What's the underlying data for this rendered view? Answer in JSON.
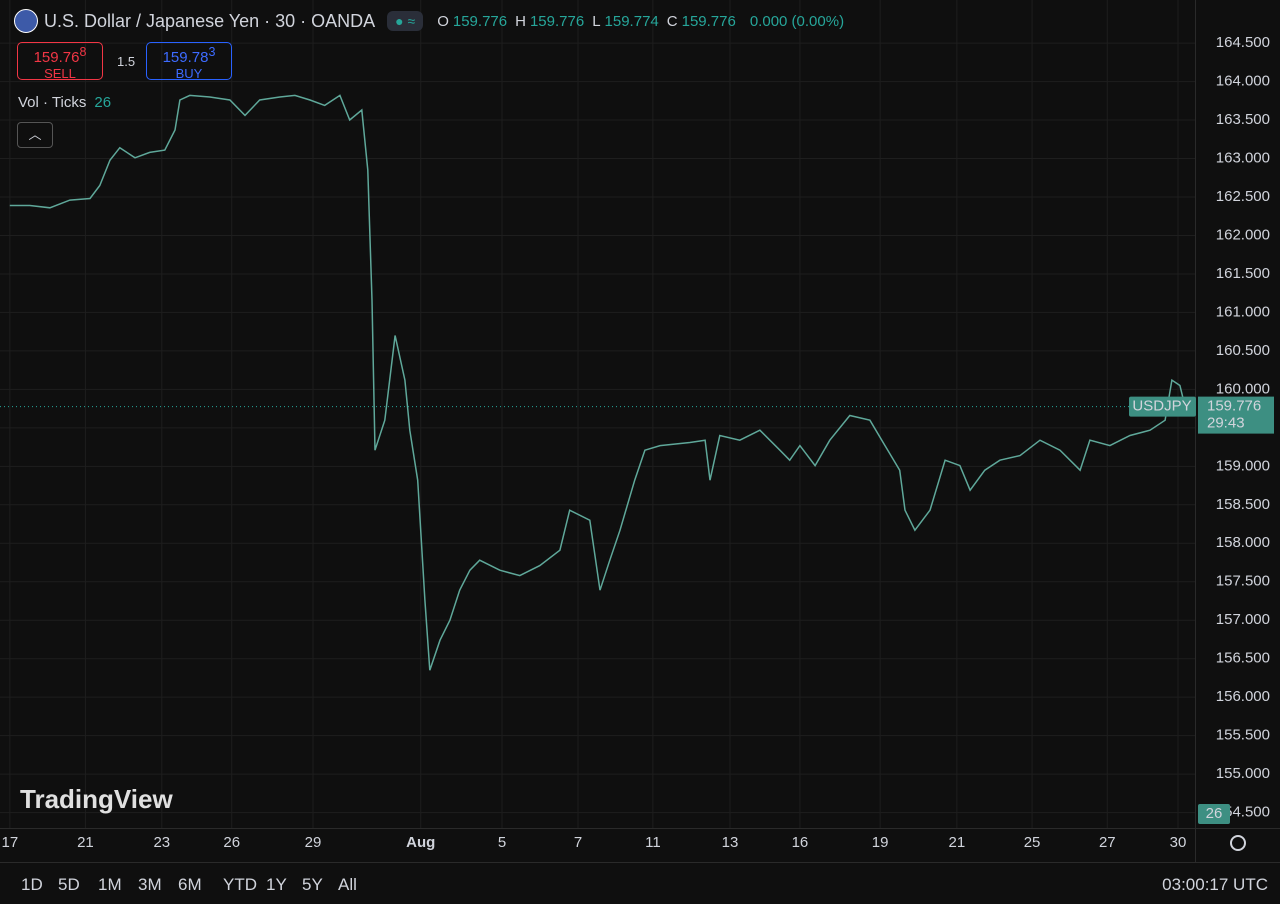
{
  "header": {
    "symbol": "U.S. Dollar / Japanese Yen · 30 · OANDA",
    "ohlc": [
      {
        "label": "O",
        "value": "159.776"
      },
      {
        "label": "H",
        "value": "159.776"
      },
      {
        "label": "L",
        "value": "159.774"
      },
      {
        "label": "C",
        "value": "159.776"
      }
    ],
    "change": "0.000 (0.00%)"
  },
  "trade": {
    "sell": {
      "price": "159.76",
      "pip": "8",
      "label": "SELL"
    },
    "spread": "1.5",
    "buy": {
      "price": "159.78",
      "pip": "3",
      "label": "BUY"
    }
  },
  "volume": {
    "label": "Vol · Ticks",
    "value": "26"
  },
  "watermark": "TradingView",
  "chart_data": {
    "type": "line",
    "x": [
      0,
      0.53,
      1.06,
      1.59,
      2.12,
      2.38,
      2.65,
      2.91,
      3.31,
      3.7,
      4.1,
      4.37,
      4.5,
      4.76,
      5.29,
      5.82,
      6.22,
      6.61,
      7.14,
      7.54,
      7.94,
      8.33,
      8.73,
      8.99,
      9.31,
      9.47,
      9.58,
      9.66,
      9.92,
      10.19,
      10.45,
      10.58,
      10.79,
      10.98,
      11.11,
      11.38,
      11.64,
      11.9,
      12.17,
      12.43,
      12.96,
      13.49,
      14.02,
      14.55,
      14.81,
      15.34,
      15.61,
      15.87,
      16.14,
      16.53,
      16.8,
      17.2,
      17.99,
      18.39,
      18.52,
      18.78,
      19.31,
      19.84,
      20.37,
      20.63,
      20.9,
      21.3,
      21.69,
      22.22,
      22.75,
      23.15,
      23.54,
      23.68,
      23.94,
      24.34,
      24.74,
      25.13,
      25.4,
      25.79,
      26.19,
      26.72,
      27.25,
      27.78,
      28.31,
      28.57,
      29.1,
      29.63,
      30.16,
      30.56,
      30.74,
      30.95,
      31.08
    ],
    "series": [
      {
        "name": "USDJPY",
        "color": "#5fa89a",
        "values": [
          162.39,
          162.39,
          162.36,
          162.46,
          162.48,
          162.65,
          162.98,
          163.14,
          163.01,
          163.08,
          163.11,
          163.37,
          163.76,
          163.82,
          163.8,
          163.76,
          163.56,
          163.76,
          163.8,
          163.82,
          163.76,
          163.69,
          163.82,
          163.5,
          163.63,
          162.85,
          161.16,
          159.21,
          159.6,
          160.7,
          160.12,
          159.47,
          158.82,
          157.26,
          156.35,
          156.74,
          157.0,
          157.39,
          157.65,
          157.78,
          157.65,
          157.58,
          157.71,
          157.91,
          158.43,
          158.3,
          157.39,
          157.78,
          158.17,
          158.82,
          159.21,
          159.27,
          159.31,
          159.34,
          158.82,
          159.4,
          159.34,
          159.47,
          159.21,
          159.08,
          159.27,
          159.01,
          159.34,
          159.66,
          159.6,
          159.27,
          158.95,
          158.43,
          158.17,
          158.43,
          159.08,
          159.01,
          158.69,
          158.95,
          159.08,
          159.14,
          159.34,
          159.21,
          158.95,
          159.34,
          159.27,
          159.4,
          159.47,
          159.6,
          160.12,
          160.05,
          159.79
        ]
      }
    ],
    "last_price": 159.776,
    "countdown": "29:43",
    "xlim": [
      -0.26,
      31.35
    ],
    "xticks": [
      {
        "value": 0,
        "label": "17"
      },
      {
        "value": 2.0,
        "label": "21"
      },
      {
        "value": 4.02,
        "label": "23"
      },
      {
        "value": 5.87,
        "label": "26"
      },
      {
        "value": 8.02,
        "label": "29"
      },
      {
        "value": 10.87,
        "label": "Aug"
      },
      {
        "value": 13.02,
        "label": "5"
      },
      {
        "value": 15.03,
        "label": "7"
      },
      {
        "value": 17.01,
        "label": "11"
      },
      {
        "value": 19.05,
        "label": "13"
      },
      {
        "value": 20.9,
        "label": "16"
      },
      {
        "value": 23.02,
        "label": "19"
      },
      {
        "value": 25.05,
        "label": "21"
      },
      {
        "value": 27.04,
        "label": "25"
      },
      {
        "value": 29.03,
        "label": "27"
      },
      {
        "value": 30.9,
        "label": "30"
      }
    ],
    "ylim": [
      154.3,
      165.06
    ],
    "yticks": [
      {
        "value": 154.5,
        "label": "154.500"
      },
      {
        "value": 155,
        "label": "155.000"
      },
      {
        "value": 155.5,
        "label": "155.500"
      },
      {
        "value": 156,
        "label": "156.000"
      },
      {
        "value": 156.5,
        "label": "156.500"
      },
      {
        "value": 157,
        "label": "157.000"
      },
      {
        "value": 157.5,
        "label": "157.500"
      },
      {
        "value": 158,
        "label": "158.000"
      },
      {
        "value": 158.5,
        "label": "158.500"
      },
      {
        "value": 159,
        "label": "159.000"
      },
      {
        "value": 159.5,
        "label": "159.500"
      },
      {
        "value": 160,
        "label": "160.000"
      },
      {
        "value": 160.5,
        "label": "160.500"
      },
      {
        "value": 161,
        "label": "161.000"
      },
      {
        "value": 161.5,
        "label": "161.500"
      },
      {
        "value": 162,
        "label": "162.000"
      },
      {
        "value": 162.5,
        "label": "162.500"
      },
      {
        "value": 163,
        "label": "163.000"
      },
      {
        "value": 163.5,
        "label": "163.500"
      },
      {
        "value": 164,
        "label": "164.000"
      },
      {
        "value": 164.5,
        "label": "164.500"
      }
    ],
    "grid": true
  },
  "toolbar": {
    "ranges": [
      "1D",
      "5D",
      "1M",
      "3M",
      "6M",
      "YTD",
      "1Y",
      "5Y",
      "All"
    ],
    "clock": "03:00:17 UTC"
  }
}
